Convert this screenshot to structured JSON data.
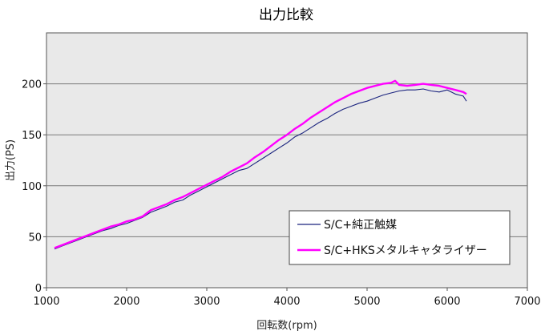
{
  "chart_data": {
    "type": "line",
    "title": "出力比較",
    "xlabel": "回転数(rpm)",
    "ylabel": "出力(PS)",
    "xlim": [
      1000,
      7000
    ],
    "ylim": [
      0,
      250
    ],
    "xticks": [
      "1000",
      "2000",
      "3000",
      "4000",
      "5000",
      "6000",
      "7000"
    ],
    "yticks": [
      "0",
      "50",
      "100",
      "150",
      "200"
    ],
    "grid": "horizontal",
    "legend_position": "lower-right",
    "background": "#e9e9e9",
    "series": [
      {
        "name": "S/C+純正触媒",
        "color": "#1a237e",
        "x": [
          1100,
          1200,
          1300,
          1400,
          1500,
          1600,
          1700,
          1800,
          1900,
          2000,
          2100,
          2200,
          2300,
          2400,
          2500,
          2600,
          2700,
          2800,
          2900,
          3000,
          3100,
          3200,
          3300,
          3400,
          3500,
          3600,
          3700,
          3800,
          3900,
          4000,
          4100,
          4200,
          4300,
          4400,
          4500,
          4600,
          4700,
          4800,
          4900,
          5000,
          5100,
          5200,
          5300,
          5400,
          5500,
          5600,
          5700,
          5800,
          5900,
          6000,
          6100,
          6150,
          6200,
          6240
        ],
        "values": [
          38,
          41,
          44,
          47,
          50,
          53,
          56,
          58,
          61,
          63,
          66,
          69,
          74,
          77,
          80,
          84,
          86,
          91,
          95,
          99,
          103,
          107,
          111,
          115,
          117,
          122,
          127,
          132,
          137,
          142,
          148,
          152,
          157,
          162,
          166,
          171,
          175,
          178,
          181,
          183,
          186,
          189,
          191,
          193,
          194,
          194,
          195,
          193,
          192,
          194,
          190,
          189,
          188,
          183
        ]
      },
      {
        "name": "S/C+HKSメタルキャタライザー",
        "color": "#ff00ff",
        "x": [
          1100,
          1200,
          1300,
          1400,
          1500,
          1600,
          1700,
          1800,
          1900,
          2000,
          2100,
          2200,
          2300,
          2400,
          2500,
          2600,
          2700,
          2800,
          2900,
          3000,
          3100,
          3200,
          3300,
          3400,
          3500,
          3600,
          3700,
          3800,
          3900,
          4000,
          4100,
          4200,
          4300,
          4400,
          4500,
          4600,
          4700,
          4800,
          4900,
          5000,
          5100,
          5200,
          5300,
          5350,
          5400,
          5500,
          5600,
          5700,
          5800,
          5900,
          6000,
          6100,
          6200,
          6240
        ],
        "values": [
          39,
          42,
          45,
          48,
          51,
          54,
          57,
          60,
          62,
          65,
          67,
          70,
          76,
          79,
          82,
          86,
          89,
          93,
          97,
          101,
          105,
          109,
          114,
          118,
          122,
          128,
          133,
          139,
          145,
          150,
          156,
          161,
          167,
          172,
          177,
          182,
          186,
          190,
          193,
          196,
          198,
          200,
          201,
          203,
          199,
          198,
          199,
          200,
          199,
          198,
          196,
          194,
          192,
          190
        ]
      }
    ]
  }
}
